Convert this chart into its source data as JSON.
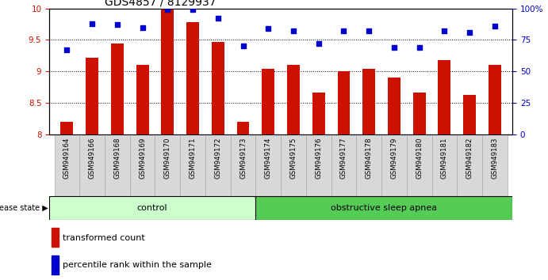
{
  "title": "GDS4857 / 8129937",
  "samples": [
    "GSM949164",
    "GSM949166",
    "GSM949168",
    "GSM949169",
    "GSM949170",
    "GSM949171",
    "GSM949172",
    "GSM949173",
    "GSM949174",
    "GSM949175",
    "GSM949176",
    "GSM949177",
    "GSM949178",
    "GSM949179",
    "GSM949180",
    "GSM949181",
    "GSM949182",
    "GSM949183"
  ],
  "bar_values": [
    8.2,
    9.22,
    9.44,
    9.1,
    9.98,
    9.78,
    9.47,
    8.2,
    9.04,
    9.1,
    8.67,
    9.0,
    9.04,
    8.9,
    8.67,
    9.18,
    8.63,
    9.1
  ],
  "dot_values": [
    67,
    88,
    87,
    85,
    99,
    99,
    92,
    70,
    84,
    82,
    72,
    82,
    82,
    69,
    69,
    82,
    81,
    86
  ],
  "bar_color": "#cc1100",
  "dot_color": "#0000cc",
  "ylim_left": [
    8,
    10
  ],
  "ylim_right": [
    0,
    100
  ],
  "yticks_left": [
    8,
    8.5,
    9,
    9.5,
    10
  ],
  "yticks_right": [
    0,
    25,
    50,
    75,
    100
  ],
  "ytick_labels_right": [
    "0",
    "25",
    "50",
    "75",
    "100%"
  ],
  "control_count": 8,
  "control_label": "control",
  "apnea_label": "obstructive sleep apnea",
  "disease_state_label": "disease state",
  "legend_bar": "transformed count",
  "legend_dot": "percentile rank within the sample",
  "bg_control": "#ccffcc",
  "bg_apnea": "#55cc55",
  "tick_bg": "#d8d8d8",
  "ax_bg": "#ffffff",
  "title_fontsize": 10,
  "tick_fontsize": 7.5,
  "bar_width": 0.5
}
